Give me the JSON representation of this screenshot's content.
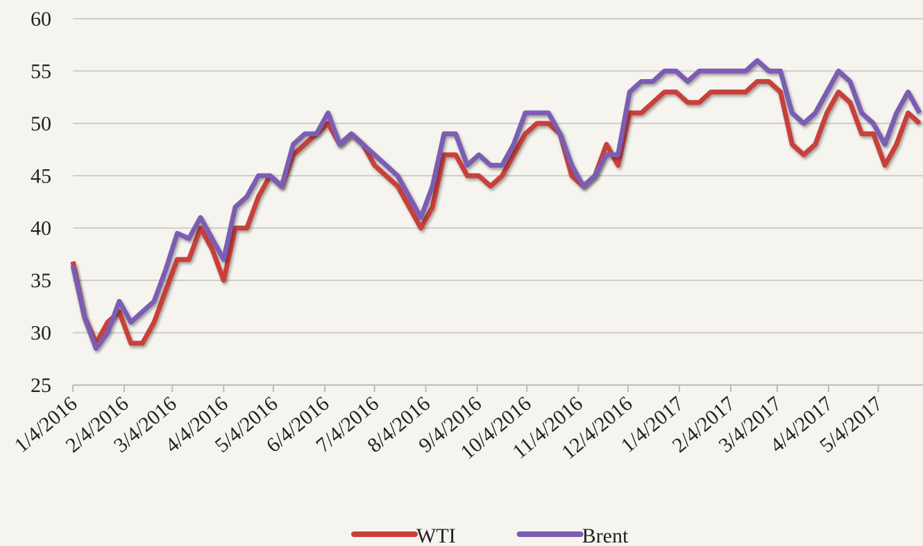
{
  "chart_data": {
    "type": "line",
    "x": [
      "1/4/2016",
      "1/11/2016",
      "1/18/2016",
      "1/25/2016",
      "2/1/2016",
      "2/8/2016",
      "2/15/2016",
      "2/22/2016",
      "2/29/2016",
      "3/7/2016",
      "3/14/2016",
      "3/21/2016",
      "3/28/2016",
      "4/4/2016",
      "4/11/2016",
      "4/18/2016",
      "4/25/2016",
      "5/2/2016",
      "5/9/2016",
      "5/16/2016",
      "5/23/2016",
      "5/30/2016",
      "6/6/2016",
      "6/13/2016",
      "6/20/2016",
      "6/27/2016",
      "7/4/2016",
      "7/11/2016",
      "7/18/2016",
      "7/25/2016",
      "8/1/2016",
      "8/8/2016",
      "8/15/2016",
      "8/22/2016",
      "8/29/2016",
      "9/5/2016",
      "9/12/2016",
      "9/19/2016",
      "9/26/2016",
      "10/3/2016",
      "10/10/2016",
      "10/17/2016",
      "10/24/2016",
      "10/31/2016",
      "11/7/2016",
      "11/14/2016",
      "11/21/2016",
      "11/28/2016",
      "12/5/2016",
      "12/12/2016",
      "12/19/2016",
      "12/26/2016",
      "1/2/2017",
      "1/9/2017",
      "1/16/2017",
      "1/23/2017",
      "1/30/2017",
      "2/6/2017",
      "2/13/2017",
      "2/20/2017",
      "2/27/2017",
      "3/6/2017",
      "3/13/2017",
      "3/20/2017",
      "3/27/2017",
      "4/3/2017",
      "4/10/2017",
      "4/17/2017",
      "4/24/2017",
      "5/1/2017",
      "5/8/2017",
      "5/15/2017",
      "5/22/2017",
      "5/29/2017"
    ],
    "series": [
      {
        "name": "WTI",
        "color": "#c9403b",
        "values": [
          36.8,
          31.5,
          29,
          31,
          32,
          29,
          29,
          31,
          34,
          37,
          37,
          40,
          38,
          35,
          40,
          40,
          43,
          45,
          44,
          47,
          48,
          49,
          50,
          48,
          49,
          48,
          46,
          45,
          44,
          42,
          40,
          42,
          47,
          47,
          45,
          45,
          44,
          45,
          47,
          49,
          50,
          50,
          49,
          45,
          44,
          45,
          48,
          46,
          51,
          51,
          52,
          53,
          53,
          52,
          52,
          53,
          53,
          53,
          53,
          54,
          54,
          53,
          48,
          47,
          48,
          51,
          53,
          52,
          49,
          49,
          46,
          48,
          51,
          50
        ]
      },
      {
        "name": "Brent",
        "color": "#7b5db3",
        "values": [
          36.4,
          31.5,
          28.5,
          30,
          33,
          31,
          32,
          33,
          36,
          39.5,
          39,
          41,
          39,
          37,
          42,
          43,
          45,
          45,
          44,
          48,
          49,
          49,
          51,
          48,
          49,
          48,
          47,
          46,
          45,
          43,
          41,
          44,
          49,
          49,
          46,
          47,
          46,
          46,
          48,
          51,
          51,
          51,
          49,
          46,
          44,
          45,
          47,
          47,
          53,
          54,
          54,
          55,
          55,
          54,
          55,
          55,
          55,
          55,
          55,
          56,
          55,
          55,
          51,
          50,
          51,
          53,
          55,
          54,
          51,
          50,
          48,
          51,
          53,
          51
        ]
      }
    ],
    "xlim": [
      "1/4/2016",
      "5/31/2017"
    ],
    "xticks": [
      "1/4/2016",
      "2/4/2016",
      "3/4/2016",
      "4/4/2016",
      "5/4/2016",
      "6/4/2016",
      "7/4/2016",
      "8/4/2016",
      "9/4/2016",
      "10/4/2016",
      "11/4/2016",
      "12/4/2016",
      "1/4/2017",
      "2/4/2017",
      "3/4/2017",
      "4/4/2017",
      "5/4/2017"
    ],
    "ylim": [
      25,
      60
    ],
    "yticks": [
      25,
      30,
      35,
      40,
      45,
      50,
      55,
      60
    ],
    "grid": true,
    "legend": "bottom"
  }
}
